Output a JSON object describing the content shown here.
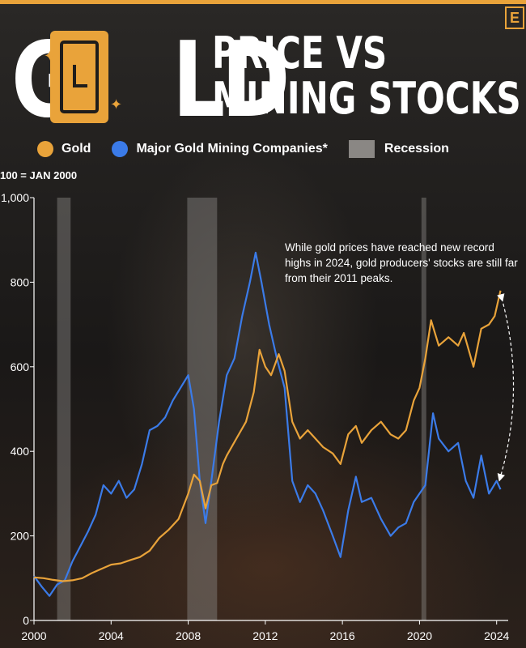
{
  "colors": {
    "gold": "#e9a33a",
    "mining": "#3b7be8",
    "recession": "#8a8784",
    "axis": "#ffffff"
  },
  "badge": "E",
  "title": {
    "left_letters": [
      "G",
      "LD"
    ],
    "right_line1": "PRICE VS",
    "right_line2": "MINING STOCKS",
    "icon": "gold-bar-icon"
  },
  "legend": [
    {
      "label": "Gold",
      "marker": "dot",
      "color": "#e9a33a"
    },
    {
      "label": "Major Gold Mining Companies*",
      "marker": "dot",
      "color": "#3b7be8"
    },
    {
      "label": "Recession",
      "marker": "box",
      "color": "#8a8784"
    }
  ],
  "unit_note": "100 = JAN 2000",
  "annotation": "While gold prices have reached new record highs in 2024, gold producers' stocks are still far from their 2011 peaks.",
  "chart_data": {
    "type": "line",
    "xlim": [
      2000,
      2024.6
    ],
    "ylim": [
      0,
      1000
    ],
    "yticks": [
      0,
      200,
      400,
      600,
      800,
      1000
    ],
    "ytick_labels": [
      "0",
      "200",
      "400",
      "600",
      "800",
      "1,000"
    ],
    "xticks": [
      2000,
      2004,
      2008,
      2012,
      2016,
      2020,
      2024
    ],
    "xtick_labels": [
      "2000",
      "2004",
      "2008",
      "2012",
      "2016",
      "2020",
      "2024"
    ],
    "recessions": [
      [
        2001.2,
        2001.9
      ],
      [
        2007.95,
        2009.5
      ],
      [
        2020.1,
        2020.35
      ]
    ],
    "series": [
      {
        "name": "Gold",
        "color": "#e9a33a",
        "points": [
          [
            2000.0,
            102
          ],
          [
            2000.5,
            100
          ],
          [
            2001.0,
            96
          ],
          [
            2001.5,
            93
          ],
          [
            2002.0,
            95
          ],
          [
            2002.5,
            100
          ],
          [
            2003.0,
            112
          ],
          [
            2003.5,
            122
          ],
          [
            2004.0,
            132
          ],
          [
            2004.5,
            135
          ],
          [
            2005.0,
            143
          ],
          [
            2005.5,
            150
          ],
          [
            2006.0,
            165
          ],
          [
            2006.5,
            195
          ],
          [
            2007.0,
            215
          ],
          [
            2007.5,
            240
          ],
          [
            2008.0,
            300
          ],
          [
            2008.3,
            345
          ],
          [
            2008.6,
            330
          ],
          [
            2008.9,
            265
          ],
          [
            2009.2,
            320
          ],
          [
            2009.5,
            325
          ],
          [
            2009.8,
            370
          ],
          [
            2010.0,
            390
          ],
          [
            2010.5,
            430
          ],
          [
            2011.0,
            470
          ],
          [
            2011.4,
            540
          ],
          [
            2011.7,
            640
          ],
          [
            2012.0,
            600
          ],
          [
            2012.3,
            580
          ],
          [
            2012.7,
            630
          ],
          [
            2013.0,
            590
          ],
          [
            2013.4,
            470
          ],
          [
            2013.8,
            430
          ],
          [
            2014.2,
            450
          ],
          [
            2014.6,
            430
          ],
          [
            2015.0,
            410
          ],
          [
            2015.5,
            395
          ],
          [
            2015.9,
            370
          ],
          [
            2016.3,
            440
          ],
          [
            2016.7,
            460
          ],
          [
            2017.0,
            420
          ],
          [
            2017.5,
            450
          ],
          [
            2018.0,
            470
          ],
          [
            2018.5,
            440
          ],
          [
            2018.9,
            430
          ],
          [
            2019.3,
            450
          ],
          [
            2019.7,
            520
          ],
          [
            2020.0,
            550
          ],
          [
            2020.3,
            620
          ],
          [
            2020.6,
            710
          ],
          [
            2021.0,
            650
          ],
          [
            2021.5,
            670
          ],
          [
            2022.0,
            650
          ],
          [
            2022.3,
            680
          ],
          [
            2022.8,
            600
          ],
          [
            2023.2,
            690
          ],
          [
            2023.6,
            700
          ],
          [
            2023.9,
            720
          ],
          [
            2024.2,
            780
          ]
        ]
      },
      {
        "name": "Major Gold Mining Companies*",
        "color": "#3b7be8",
        "points": [
          [
            2000.0,
            105
          ],
          [
            2000.4,
            80
          ],
          [
            2000.8,
            58
          ],
          [
            2001.2,
            85
          ],
          [
            2001.6,
            95
          ],
          [
            2002.0,
            140
          ],
          [
            2002.4,
            175
          ],
          [
            2002.8,
            210
          ],
          [
            2003.2,
            250
          ],
          [
            2003.6,
            320
          ],
          [
            2004.0,
            300
          ],
          [
            2004.4,
            330
          ],
          [
            2004.8,
            290
          ],
          [
            2005.2,
            310
          ],
          [
            2005.6,
            370
          ],
          [
            2006.0,
            450
          ],
          [
            2006.4,
            460
          ],
          [
            2006.8,
            480
          ],
          [
            2007.2,
            520
          ],
          [
            2007.6,
            550
          ],
          [
            2008.0,
            580
          ],
          [
            2008.3,
            500
          ],
          [
            2008.6,
            330
          ],
          [
            2008.9,
            230
          ],
          [
            2009.2,
            330
          ],
          [
            2009.6,
            470
          ],
          [
            2010.0,
            580
          ],
          [
            2010.4,
            620
          ],
          [
            2010.8,
            720
          ],
          [
            2011.2,
            800
          ],
          [
            2011.5,
            870
          ],
          [
            2011.8,
            800
          ],
          [
            2012.2,
            700
          ],
          [
            2012.6,
            620
          ],
          [
            2013.0,
            550
          ],
          [
            2013.4,
            330
          ],
          [
            2013.8,
            280
          ],
          [
            2014.2,
            320
          ],
          [
            2014.6,
            300
          ],
          [
            2015.0,
            260
          ],
          [
            2015.5,
            200
          ],
          [
            2015.9,
            150
          ],
          [
            2016.3,
            260
          ],
          [
            2016.7,
            340
          ],
          [
            2017.0,
            280
          ],
          [
            2017.5,
            290
          ],
          [
            2018.0,
            240
          ],
          [
            2018.5,
            200
          ],
          [
            2018.9,
            220
          ],
          [
            2019.3,
            230
          ],
          [
            2019.7,
            280
          ],
          [
            2020.0,
            300
          ],
          [
            2020.3,
            320
          ],
          [
            2020.7,
            490
          ],
          [
            2021.0,
            430
          ],
          [
            2021.5,
            400
          ],
          [
            2022.0,
            420
          ],
          [
            2022.4,
            330
          ],
          [
            2022.8,
            290
          ],
          [
            2023.2,
            390
          ],
          [
            2023.6,
            300
          ],
          [
            2024.0,
            330
          ],
          [
            2024.2,
            310
          ]
        ]
      }
    ]
  }
}
